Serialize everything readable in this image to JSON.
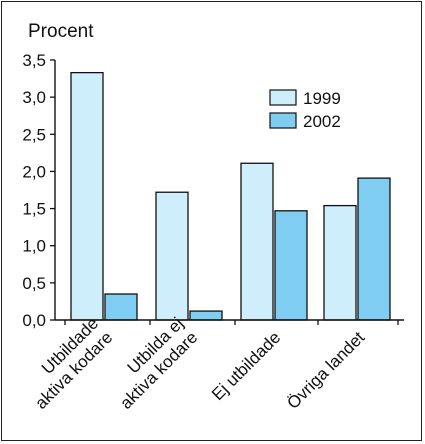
{
  "chart_data": {
    "type": "bar",
    "ylabel": "Procent",
    "ylim": [
      0,
      3.5
    ],
    "yticks": [
      0,
      0.5,
      1.0,
      1.5,
      2.0,
      2.5,
      3.0,
      3.5
    ],
    "ytick_labels": [
      "0,0",
      "0,5",
      "1,0",
      "1,5",
      "2,0",
      "2,5",
      "3,0",
      "3,5"
    ],
    "categories": [
      [
        "Utbildade",
        "aktiva kodare"
      ],
      [
        "Utbilda ej",
        "aktiva kodare"
      ],
      [
        "Ej utbildade"
      ],
      [
        "Övriga landet"
      ]
    ],
    "series": [
      {
        "name": "1999",
        "values": [
          3.33,
          1.72,
          2.11,
          1.54
        ],
        "color": "#cfeefb"
      },
      {
        "name": "2002",
        "values": [
          0.35,
          0.12,
          1.47,
          1.91
        ],
        "color": "#7fcdf0"
      }
    ],
    "legend_position": "top-right",
    "grid": false
  }
}
